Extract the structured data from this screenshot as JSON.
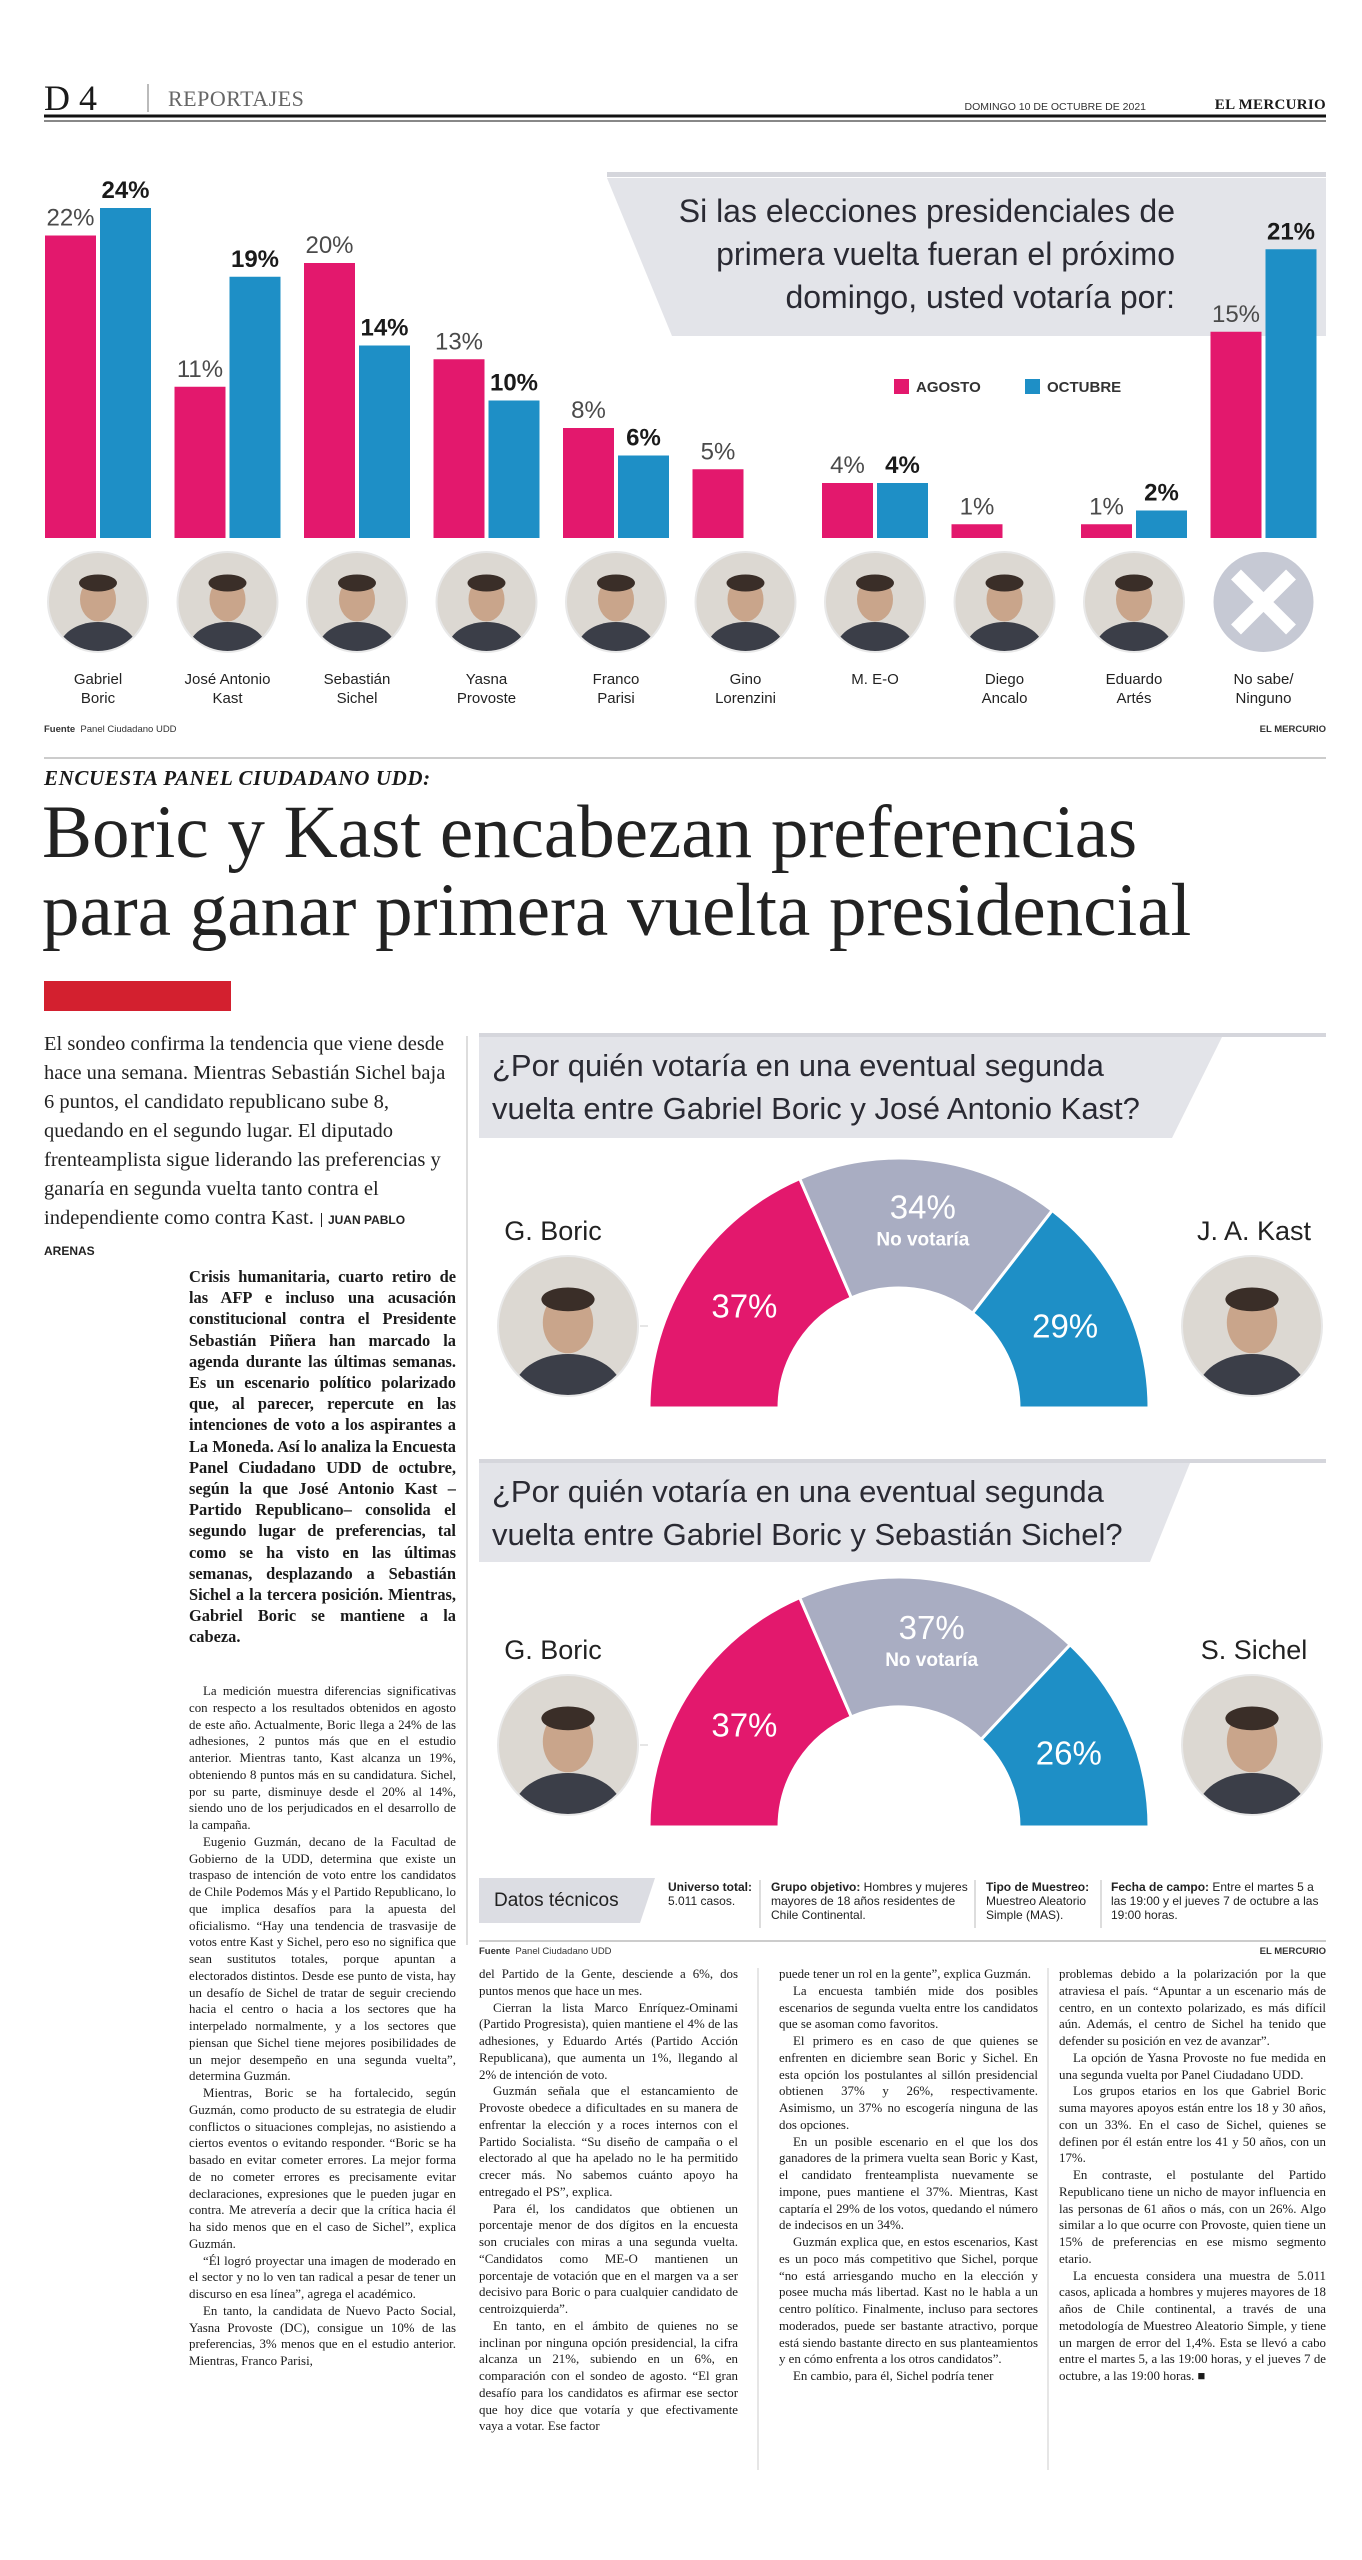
{
  "header": {
    "page": "D 4",
    "section": "REPORTAJES",
    "date": "DOMINGO 10 DE OCTUBRE DE 2021",
    "paper": "EL MERCURIO"
  },
  "chart_data": [
    {
      "type": "bar",
      "title": "Si las elecciones presidenciales de primera vuelta fueran el próximo domingo, usted votaría por:",
      "categories": [
        "Gabriel\nBoric",
        "José Antonio\nKast",
        "Sebastián\nSichel",
        "Yasna\nProvoste",
        "Franco\nParisi",
        "Gino\nLorenzini",
        "M. E-O",
        "Diego\nAncalo",
        "Eduardo\nArtés",
        "No sabe/\nNinguno"
      ],
      "series": [
        {
          "name": "AGOSTO",
          "color": "#e3186d",
          "values": [
            22,
            11,
            20,
            13,
            8,
            5,
            4,
            1,
            1,
            15
          ],
          "value_labels": [
            "22%",
            "11%",
            "20%",
            "13%",
            "8%",
            "5%",
            "4%",
            "1%",
            "1%",
            "15%"
          ]
        },
        {
          "name": "OCTUBRE",
          "color": "#1e8fc6",
          "values": [
            24,
            19,
            14,
            10,
            6,
            null,
            4,
            null,
            2,
            21
          ],
          "value_labels": [
            "24%",
            "19%",
            "14%",
            "10%",
            "6%",
            null,
            "4%",
            null,
            "2%",
            "21%"
          ]
        }
      ],
      "legend": "top-right"
    },
    {
      "type": "donut",
      "semicircle": true,
      "title": "¿Por quién votaría en una eventual segunda vuelta entre Gabriel Boric y José Antonio Kast?",
      "categories": [
        "G. Boric",
        "No votaría",
        "J. A. Kast"
      ],
      "values": [
        37,
        34,
        29
      ],
      "value_labels": [
        "37%",
        "34%",
        "29%"
      ],
      "colors": [
        "#e3186d",
        "#a9adc2",
        "#1e8fc6"
      ]
    },
    {
      "type": "donut",
      "semicircle": true,
      "title": "¿Por quién votaría en una eventual segunda vuelta entre Gabriel Boric y Sebastián Sichel?",
      "categories": [
        "G. Boric",
        "No votaría",
        "S. Sichel"
      ],
      "values": [
        37,
        37,
        26
      ],
      "value_labels": [
        "37%",
        "37%",
        "26%"
      ],
      "colors": [
        "#e3186d",
        "#a9adc2",
        "#1e8fc6"
      ]
    }
  ],
  "sources": [
    {
      "label": "Fuente",
      "text": "Panel Ciudadano UDD",
      "credit": "EL MERCURIO"
    },
    {
      "label": "Fuente",
      "text": "Panel Ciudadano UDD",
      "credit": "EL MERCURIO"
    }
  ],
  "tech": {
    "title": "Datos técnicos",
    "items": [
      {
        "label": "Universo total:",
        "text": "5.011 casos."
      },
      {
        "label": "Grupo objetivo:",
        "text": "Hombres y mujeres mayores de 18 años residentes de Chile Continental."
      },
      {
        "label": "Tipo de Muestreo:",
        "text": "Muestreo Aleatorio Simple (MAS)."
      },
      {
        "label": "Fecha de campo:",
        "text": "Entre el martes 5 a las 19:00 y el jueves 7 de octubre a las 19:00 horas."
      }
    ]
  },
  "article": {
    "kicker": "ENCUESTA PANEL CIUDADANO UDD:",
    "headline": [
      "Boric y Kast encabezan preferencias",
      "para ganar primera vuelta presidencial"
    ],
    "lead": "El sondeo confirma la tendencia que viene desde hace una semana. Mientras Sebastián Sichel baja 6 puntos, el candidato republicano sube 8, quedando en el segundo lugar. El diputado frenteamplista sigue liderando las preferencias y ganaría en segunda vuelta tanto contra el independiente como contra Kast.",
    "byline": "JUAN PABLO ARENAS",
    "intro": "Crisis humanitaria, cuarto retiro de las AFP e incluso una acusación constitucional contra el Presidente Sebastián Piñera han marcado la agenda durante las últimas semanas. Es un escenario político polarizado que, al parecer, repercute en las intenciones de voto a los aspirantes a La Moneda. Así lo analiza la Encuesta Panel Ciudadano UDD de octubre, según la que José Antonio Kast –Partido Republicano– consolida el segundo lugar de preferencias, tal como se ha visto en las últimas semanas, desplazando a Sebastián Sichel a la tercera posición. Mientras, Gabriel Boric se mantiene a la cabeza.",
    "columns": [
      [
        "La medición muestra diferencias significativas con respecto a los resultados obtenidos en agosto de este año. Actualmente, Boric llega a 24% de las adhesiones, 2 puntos más que en el estudio anterior. Mientras tanto, Kast alcanza un 19%, obteniendo 8 puntos más en su candidatura. Sichel, por su parte, disminuye desde el 20% al 14%, siendo uno de los perjudicados en el desarrollo de la campaña.",
        "Eugenio Guzmán, decano de la Facultad de Gobierno de la UDD, determina que existe un traspaso de intención de voto entre los candidatos de Chile Podemos Más y el Partido Republicano, lo que implica desafíos para la apuesta del oficialismo. “Hay una tendencia de trasvasije de votos entre Kast y Sichel, pero eso no significa que sean sustitutos totales, porque apuntan a electorados distintos. Desde ese punto de vista, hay un desafío de Sichel de tratar de seguir creciendo hacia el centro o hacia a los sectores que ha interpelado normalmente, y a los sectores que piensan que Sichel tiene mejores posibilidades de un mejor desempeño en una segunda vuelta”, determina Guzmán.",
        "Mientras, Boric se ha fortalecido, según Guzmán, como producto de su estrategia de eludir conflictos o situaciones complejas, no asistiendo a ciertos eventos o evitando responder. “Boric se ha basado en evitar cometer errores. La mejor forma de no cometer errores es precisamente evitar declaraciones, expresiones que le pueden jugar en contra. Me atrevería a decir que la crítica hacia él ha sido menos que en el caso de Sichel”, explica Guzmán.",
        "“Él logró proyectar una imagen de moderado en el sector y no lo ven tan radical a pesar de tener un discurso en esa línea”, agrega el académico.",
        "En tanto, la candidata de Nuevo Pacto Social, Yasna Provoste (DC), consigue un 10% de las preferencias, 3% menos que en el estudio anterior. Mientras, Franco Parisi,"
      ],
      [
        "del Partido de la Gente, desciende a 6%, dos puntos menos que hace un mes.",
        "Cierran la lista Marco Enríquez-Ominami (Partido Progresista), quien mantiene el 4% de las adhesiones, y Eduardo Artés (Partido Acción Republicana), que aumenta un 1%, llegando al 2% de intención de voto.",
        "Guzmán señala que el estancamiento de Provoste obedece a dificultades en su manera de enfrentar la elección y a roces internos con el Partido Socialista. “Su diseño de campaña o el electorado al que ha apelado no le ha permitido crecer más. No sabemos cuánto apoyo ha entregado el PS”, explica.",
        "Para él, los candidatos que obtienen un porcentaje menor de dos dígitos en la encuesta son cruciales con miras a una segunda vuelta. “Candidatos como ME-O mantienen un porcentaje de votación que en el margen va a ser decisivo para Boric o para cualquier candidato de centroizquierda”.",
        "En tanto, en el ámbito de quienes no se inclinan por ninguna opción presidencial, la cifra alcanza un 21%, subiendo en un 6%, en comparación con el sondeo de agosto. “El gran desafío para los candidatos es afirmar ese sector que hoy dice que votaría y que efectivamente vaya a votar. Ese factor"
      ],
      [
        "puede tener un rol en la gente”, explica Guzmán.",
        "La encuesta también mide dos posibles escenarios de segunda vuelta entre los candidatos que se asoman como favoritos.",
        "El primero es en caso de que quienes se enfrenten en diciembre sean Boric y Sichel. En esta opción los postulantes al sillón presidencial obtienen 37% y 26%, respectivamente. Asimismo, un 37% no escogería ninguna de las dos opciones.",
        "En un posible escenario en el que los dos ganadores de la primera vuelta sean Boric y Kast, el candidato frenteamplista nuevamente se impone, pues mantiene el 37%. Mientras, Kast captaría el 29% de los votos, quedando el número de indecisos en un 34%.",
        "Guzmán explica que, en estos escenarios, Kast es un poco más competitivo que Sichel, porque “no está arriesgando mucho en la elección y posee mucha más libertad. Kast no le habla a un centro político. Finalmente, incluso para sectores moderados, puede ser bastante atractivo, porque está siendo bastante directo en sus planteamientos y en cómo enfrenta a los otros candidatos”.",
        "En cambio, para él, Sichel podría tener"
      ],
      [
        "problemas debido a la polarización por la que atraviesa el país. “Apuntar a un escenario más de centro, en un contexto polarizado, es más difícil aún. Además, el centro de Sichel ha tenido que defender su posición en vez de avanzar”.",
        "La opción de Yasna Provoste no fue medida en una segunda vuelta por Panel Ciudadano UDD.",
        "Los grupos etarios en los que Gabriel Boric suma mayores apoyos están entre los 18 y 30 años, con un 33%. En el caso de Sichel, quienes se definen por él están entre los 41 y 50 años, con un 17%.",
        "En contraste, el postulante del Partido Republicano tiene un nicho de mayor influencia en las personas de 61 años o más, con un 26%. Algo similar a lo que ocurre con Provoste, quien tiene un 15% de preferencias en ese mismo segmento etario.",
        "La encuesta considera una muestra de 5.011 casos, aplicada a hombres y mujeres mayores de 18 años de Chile continental, a través de una metodología de Muestreo Aleatorio Simple, y tiene un margen de error del 1,4%. Esta se llevó a cabo entre el martes 5, a las 19:00 horas, y el jueves 7 de octubre, a las 19:00 horas. ■"
      ]
    ]
  }
}
